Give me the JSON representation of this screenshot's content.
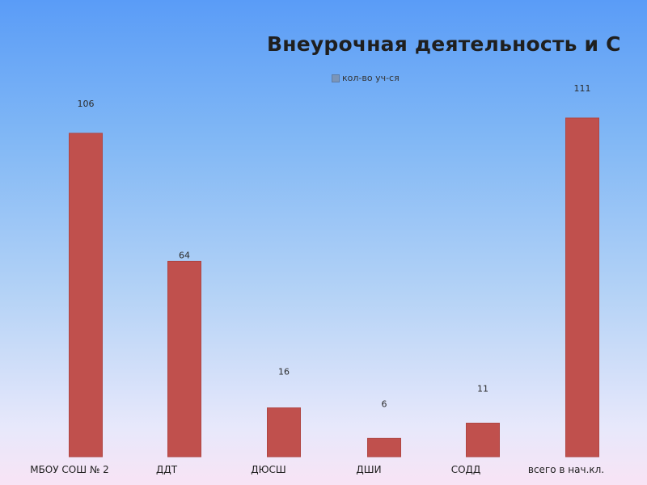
{
  "chart_data": {
    "type": "bar",
    "title": "Внеурочная деятельность и С",
    "xlabel": "",
    "ylabel": "",
    "categories": [
      "МБОУ СОШ № 2",
      "ДДТ",
      "ДЮСШ",
      "ДШИ",
      "СОДД",
      "всего в нач.кл."
    ],
    "series": [
      {
        "name": "кол-во уч-ся",
        "values": [
          106,
          64,
          16,
          6,
          11,
          111
        ],
        "color": "#c0504d"
      }
    ],
    "ylim": [
      0,
      111
    ],
    "grid": false,
    "legend_position": "top-center"
  }
}
